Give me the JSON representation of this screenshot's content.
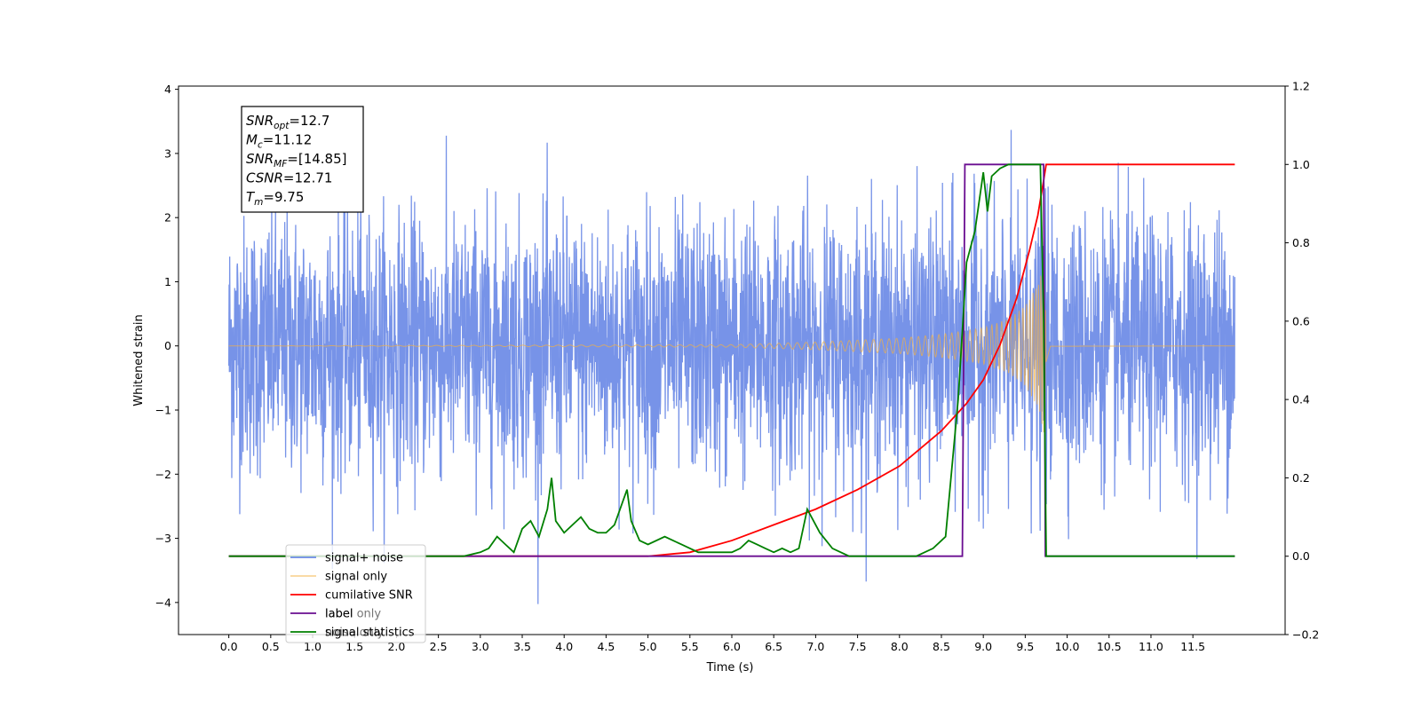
{
  "chart_data": {
    "type": "line",
    "title": "",
    "xlabel": "Time (s)",
    "ylabel": "Whitened strain",
    "y2label": "",
    "xlim": [
      -0.6,
      12.6
    ],
    "ylim": [
      -4.5,
      4.05
    ],
    "y2lim": [
      -0.2,
      1.2
    ],
    "xticks": [
      "0.0",
      "0.5",
      "1.0",
      "1.5",
      "2.0",
      "2.5",
      "3.0",
      "3.5",
      "4.0",
      "4.5",
      "5.0",
      "5.5",
      "6.0",
      "6.5",
      "7.0",
      "7.5",
      "8.0",
      "8.5",
      "9.0",
      "9.5",
      "10.0",
      "10.5",
      "11.0",
      "11.5"
    ],
    "yticks": [
      "4",
      "3",
      "2",
      "1",
      "0",
      "−1",
      "−2",
      "−3",
      "−4"
    ],
    "y2ticks": [
      "1.2",
      "1.0",
      "0.8",
      "0.6",
      "0.4",
      "0.2",
      "0.0",
      "−0.2"
    ],
    "grid": false,
    "legend_position": "lower-left",
    "annotation": [
      {
        "sym": "SNR",
        "sub": "opt",
        "value": "=12.7"
      },
      {
        "sym": "M",
        "sub": "c",
        "value": "=11.12"
      },
      {
        "sym": "SNR",
        "sub": "MF",
        "value": "=[14.85]"
      },
      {
        "sym": "CSNR",
        "sub": "",
        "value": "=12.71"
      },
      {
        "sym": "T",
        "sub": "m",
        "value": "=9.75"
      }
    ],
    "series": [
      {
        "name": "signal+ noise",
        "axis": "left",
        "color": "#6b8ae6",
        "description": "whitened noise with unit std plus injected chirp",
        "x_range": [
          0.0,
          12.0
        ],
        "approx_amplitude_range": [
          -4.1,
          3.65
        ]
      },
      {
        "name": "signal only",
        "axis": "left",
        "color": "#f5b041",
        "description": "chirp with amplitude growing toward merger",
        "amplitude_envelope": {
          "x": [
            0.0,
            6.0,
            7.0,
            8.0,
            8.5,
            9.0,
            9.3,
            9.5,
            9.65,
            9.72,
            9.75,
            9.8,
            12.0
          ],
          "y": [
            0.0,
            0.02,
            0.06,
            0.12,
            0.18,
            0.28,
            0.42,
            0.62,
            0.95,
            1.35,
            0.9,
            0.02,
            0.0
          ]
        }
      },
      {
        "name": "cumilative SNR",
        "axis": "right",
        "color": "#ff0000",
        "x": [
          0.0,
          5.0,
          5.5,
          6.0,
          6.5,
          7.0,
          7.5,
          8.0,
          8.5,
          8.8,
          9.0,
          9.2,
          9.4,
          9.55,
          9.65,
          9.72,
          9.75,
          12.0
        ],
        "y": [
          0.0,
          0.0,
          0.01,
          0.04,
          0.08,
          0.12,
          0.17,
          0.23,
          0.32,
          0.39,
          0.45,
          0.54,
          0.66,
          0.78,
          0.87,
          0.96,
          1.0,
          1.0
        ]
      },
      {
        "name": "label",
        "axis": "right",
        "color": "#6a0d91",
        "x": [
          0.0,
          8.75,
          8.78,
          9.72,
          9.74,
          12.0
        ],
        "y": [
          0.0,
          0.0,
          1.0,
          1.0,
          0.0,
          0.0
        ]
      },
      {
        "name": "signal statistics",
        "axis": "right",
        "color": "#008000",
        "x": [
          0.0,
          2.8,
          3.0,
          3.1,
          3.2,
          3.3,
          3.4,
          3.5,
          3.6,
          3.7,
          3.8,
          3.85,
          3.9,
          4.0,
          4.1,
          4.2,
          4.3,
          4.4,
          4.5,
          4.6,
          4.7,
          4.75,
          4.8,
          4.9,
          5.0,
          5.2,
          5.3,
          5.4,
          5.6,
          5.8,
          6.0,
          6.1,
          6.2,
          6.3,
          6.4,
          6.5,
          6.6,
          6.7,
          6.8,
          6.9,
          6.95,
          7.05,
          7.2,
          7.4,
          7.6,
          7.8,
          8.0,
          8.2,
          8.4,
          8.55,
          8.7,
          8.8,
          8.9,
          9.0,
          9.05,
          9.1,
          9.2,
          9.3,
          9.4,
          9.5,
          9.6,
          9.68,
          9.72,
          9.75,
          9.8,
          12.0
        ],
        "y": [
          0.0,
          0.0,
          0.01,
          0.02,
          0.05,
          0.03,
          0.01,
          0.07,
          0.09,
          0.05,
          0.12,
          0.2,
          0.09,
          0.06,
          0.08,
          0.1,
          0.07,
          0.06,
          0.06,
          0.08,
          0.14,
          0.17,
          0.09,
          0.04,
          0.03,
          0.05,
          0.04,
          0.03,
          0.01,
          0.01,
          0.01,
          0.02,
          0.04,
          0.03,
          0.02,
          0.01,
          0.02,
          0.01,
          0.02,
          0.12,
          0.1,
          0.06,
          0.02,
          0.0,
          0.0,
          0.0,
          0.0,
          0.0,
          0.02,
          0.05,
          0.4,
          0.75,
          0.83,
          0.98,
          0.88,
          0.97,
          0.99,
          1.0,
          1.0,
          1.0,
          1.0,
          1.0,
          0.6,
          0.0,
          0.0,
          0.0
        ]
      }
    ],
    "legend": [
      "signal+ noise",
      "signal only",
      "cumilative SNR",
      "label",
      "signal statistics"
    ],
    "legend_ghost_text": [
      "label only",
      "noise only"
    ]
  }
}
